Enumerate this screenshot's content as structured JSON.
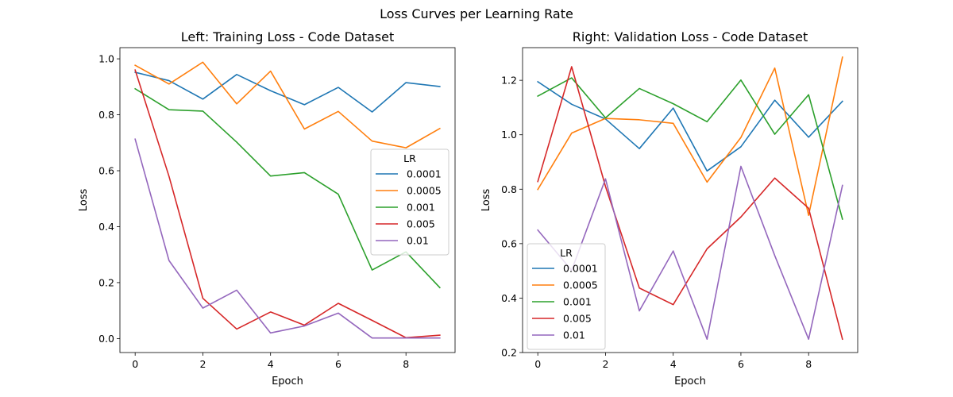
{
  "figure": {
    "suptitle": "Loss Curves per Learning Rate"
  },
  "colors": [
    "#1f77b4",
    "#ff7f0e",
    "#2ca02c",
    "#d62728",
    "#9467bd"
  ],
  "chart_data": [
    {
      "type": "line",
      "title": "Left: Training Loss - Code Dataset",
      "xlabel": "Epoch",
      "ylabel": "Loss",
      "x": [
        0,
        1,
        2,
        3,
        4,
        5,
        6,
        7,
        8,
        9
      ],
      "xlim": [
        -0.45,
        9.45
      ],
      "ylim": [
        -0.05,
        1.04
      ],
      "xticks": [
        0,
        2,
        4,
        6,
        8
      ],
      "xtick_labels": [
        "0",
        "2",
        "4",
        "6",
        "8"
      ],
      "yticks": [
        0.0,
        0.2,
        0.4,
        0.6,
        0.8,
        1.0
      ],
      "ytick_labels": [
        "0.0",
        "0.2",
        "0.4",
        "0.6",
        "0.8",
        "1.0"
      ],
      "grid": false,
      "legend": {
        "title": "LR",
        "placement": "center-right"
      },
      "series": [
        {
          "name": "0.0001",
          "values": [
            0.952,
            0.922,
            0.856,
            0.944,
            0.886,
            0.836,
            0.898,
            0.81,
            0.915,
            0.901
          ]
        },
        {
          "name": "0.0005",
          "values": [
            0.977,
            0.91,
            0.988,
            0.839,
            0.956,
            0.749,
            0.812,
            0.706,
            0.682,
            0.751
          ]
        },
        {
          "name": "0.001",
          "values": [
            0.893,
            0.818,
            0.813,
            0.702,
            0.581,
            0.593,
            0.516,
            0.245,
            0.31,
            0.182
          ]
        },
        {
          "name": "0.005",
          "values": [
            0.96,
            0.58,
            0.144,
            0.034,
            0.095,
            0.048,
            0.126,
            0.065,
            0.003,
            0.012
          ]
        },
        {
          "name": "0.01",
          "values": [
            0.713,
            0.279,
            0.109,
            0.173,
            0.02,
            0.045,
            0.091,
            0.002,
            0.002,
            0.002
          ]
        }
      ]
    },
    {
      "type": "line",
      "title": "Right: Validation Loss - Code Dataset",
      "xlabel": "Epoch",
      "ylabel": "Loss",
      "x": [
        0,
        1,
        2,
        3,
        4,
        5,
        6,
        7,
        8,
        9
      ],
      "xlim": [
        -0.45,
        9.45
      ],
      "ylim": [
        0.2,
        1.32
      ],
      "xticks": [
        0,
        2,
        4,
        6,
        8
      ],
      "xtick_labels": [
        "0",
        "2",
        "4",
        "6",
        "8"
      ],
      "yticks": [
        0.2,
        0.4,
        0.6,
        0.8,
        1.0,
        1.2
      ],
      "ytick_labels": [
        "0.2",
        "0.4",
        "0.6",
        "0.8",
        "1.0",
        "1.2"
      ],
      "grid": false,
      "legend": {
        "title": "LR",
        "placement": "lower-left"
      },
      "series": [
        {
          "name": "0.0001",
          "values": [
            1.195,
            1.112,
            1.058,
            0.949,
            1.098,
            0.867,
            0.956,
            1.127,
            0.991,
            1.123
          ]
        },
        {
          "name": "0.0005",
          "values": [
            0.799,
            1.006,
            1.06,
            1.055,
            1.042,
            0.826,
            0.99,
            1.245,
            0.704,
            1.285
          ]
        },
        {
          "name": "0.001",
          "values": [
            1.142,
            1.209,
            1.062,
            1.17,
            1.114,
            1.048,
            1.201,
            1.002,
            1.147,
            0.69
          ]
        },
        {
          "name": "0.005",
          "values": [
            0.828,
            1.25,
            0.81,
            0.437,
            0.376,
            0.581,
            0.698,
            0.841,
            0.73,
            0.249
          ]
        },
        {
          "name": "0.01",
          "values": [
            0.65,
            0.502,
            0.838,
            0.353,
            0.573,
            0.249,
            0.884,
            0.556,
            0.249,
            0.814
          ]
        }
      ]
    }
  ]
}
